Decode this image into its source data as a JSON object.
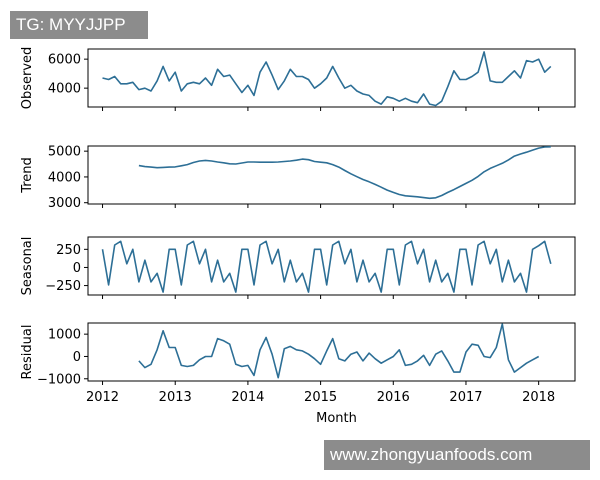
{
  "chart_data": {
    "type": "line",
    "xlabel": "Month",
    "x_tick_labels": [
      "2012",
      "2013",
      "2014",
      "2015",
      "2016",
      "2017",
      "2018"
    ],
    "x_range": [
      2011.8,
      2018.5
    ],
    "line_color": "#2d6f96",
    "panels": [
      {
        "ylabel": "Observed",
        "ylim": [
          2700,
          6700
        ],
        "yticks": [
          {
            "value": 4000,
            "label": "4000"
          },
          {
            "value": 6000,
            "label": "6000"
          }
        ],
        "start": 2012.0,
        "values": [
          4700,
          4600,
          4800,
          4300,
          4300,
          4400,
          3900,
          4000,
          3800,
          4500,
          5500,
          4500,
          5100,
          3800,
          4300,
          4400,
          4300,
          4700,
          4200,
          5300,
          4800,
          4900,
          4300,
          3700,
          4200,
          3500,
          5100,
          5800,
          4900,
          3900,
          4500,
          5300,
          4800,
          4800,
          4600,
          4000,
          4300,
          4700,
          5500,
          4700,
          4000,
          4200,
          3800,
          3600,
          3500,
          3100,
          2900,
          3400,
          3300,
          3100,
          3300,
          3100,
          3000,
          3600,
          2900,
          2800,
          3100,
          4100,
          5200,
          4600,
          4600,
          4800,
          5100,
          6500,
          4500,
          4400,
          4400,
          4800,
          5200,
          4700,
          5900,
          5800,
          6000,
          5100,
          5500
        ]
      },
      {
        "ylabel": "Trend",
        "ylim": [
          2950,
          5200
        ],
        "yticks": [
          {
            "value": 3000,
            "label": "3000"
          },
          {
            "value": 4000,
            "label": "4000"
          },
          {
            "value": 5000,
            "label": "5000"
          }
        ],
        "start": 2012.5,
        "values": [
          4440,
          4400,
          4380,
          4360,
          4370,
          4380,
          4390,
          4430,
          4480,
          4560,
          4620,
          4640,
          4620,
          4580,
          4550,
          4510,
          4500,
          4540,
          4580,
          4580,
          4570,
          4570,
          4570,
          4580,
          4600,
          4620,
          4650,
          4690,
          4670,
          4600,
          4570,
          4550,
          4480,
          4380,
          4250,
          4120,
          4010,
          3900,
          3810,
          3710,
          3600,
          3490,
          3400,
          3320,
          3270,
          3250,
          3230,
          3200,
          3170,
          3190,
          3280,
          3400,
          3510,
          3630,
          3750,
          3870,
          4020,
          4200,
          4330,
          4430,
          4530,
          4660,
          4810,
          4890,
          4960,
          5040,
          5120,
          5160,
          5170
        ]
      },
      {
        "ylabel": "Seasonal",
        "ylim": [
          -380,
          420
        ],
        "yticks": [
          {
            "value": 250,
            "label": "250"
          },
          {
            "value": 0,
            "label": "0"
          },
          {
            "value": -250,
            "label": "−250"
          }
        ],
        "start": 2012.0,
        "values": [
          250,
          -240,
          310,
          360,
          50,
          250,
          -200,
          100,
          -200,
          -80,
          -340,
          250,
          250,
          -240,
          310,
          360,
          50,
          250,
          -200,
          100,
          -200,
          -80,
          -340,
          250,
          250,
          -240,
          310,
          360,
          50,
          250,
          -200,
          100,
          -200,
          -80,
          -340,
          250,
          250,
          -240,
          310,
          360,
          50,
          250,
          -200,
          100,
          -200,
          -80,
          -340,
          250,
          250,
          -240,
          310,
          360,
          50,
          250,
          -200,
          100,
          -200,
          -80,
          -340,
          250,
          250,
          -240,
          310,
          360,
          50,
          250,
          -200,
          100,
          -200,
          -80,
          -340,
          250,
          300,
          360,
          50
        ]
      },
      {
        "ylabel": "Residual",
        "ylim": [
          -1100,
          1500
        ],
        "yticks": [
          {
            "value": 1000,
            "label": "1000"
          },
          {
            "value": 0,
            "label": "0"
          },
          {
            "value": -1000,
            "label": "−1000"
          }
        ],
        "start": 2012.5,
        "values": [
          -200,
          -500,
          -350,
          300,
          1150,
          400,
          400,
          -400,
          -450,
          -400,
          -150,
          0,
          0,
          800,
          700,
          550,
          -350,
          -450,
          -400,
          -850,
          300,
          850,
          100,
          -950,
          350,
          450,
          300,
          250,
          100,
          -100,
          -350,
          250,
          800,
          -100,
          -200,
          100,
          200,
          -200,
          150,
          -100,
          -300,
          -150,
          0,
          300,
          -400,
          -350,
          -200,
          50,
          -400,
          100,
          250,
          -200,
          -700,
          -700,
          200,
          550,
          500,
          0,
          -50,
          400,
          1450,
          -150,
          -700,
          -500,
          -300,
          -150,
          0
        ]
      }
    ]
  },
  "overlay": {
    "tag_text": "TG: MYYJJPP",
    "watermark_text": "www.zhongyuanfoods.com"
  }
}
